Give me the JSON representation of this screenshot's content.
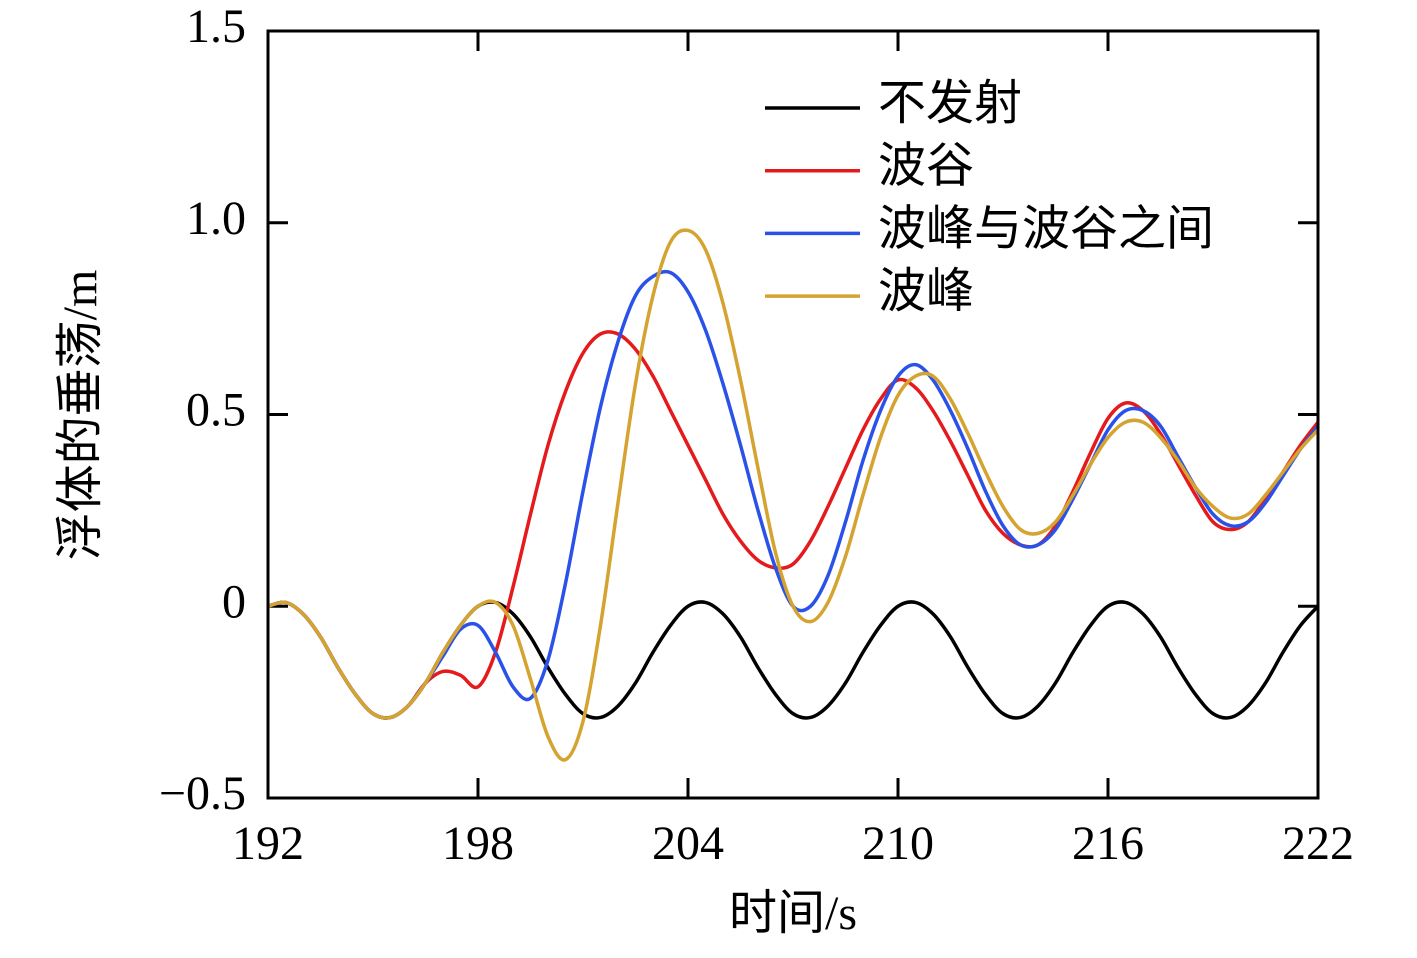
{
  "chart_data": {
    "type": "line",
    "xlabel": "时间/s",
    "ylabel": "浮体的垂荡/m",
    "xlim": [
      192,
      222
    ],
    "xticks": [
      192,
      198,
      204,
      210,
      216,
      222
    ],
    "ylim": [
      -0.5,
      1.5
    ],
    "yticks": [
      {
        "value": -0.5,
        "label": "−0.5"
      },
      0,
      0.5,
      {
        "value": 1.0,
        "label": "1.0"
      },
      1.5
    ],
    "legend": "upper right",
    "x": [
      192,
      192.5,
      193,
      193.5,
      194,
      194.5,
      195,
      195.5,
      196,
      196.5,
      197,
      197.5,
      198,
      198.5,
      199,
      199.5,
      200,
      200.5,
      201,
      201.5,
      202,
      202.5,
      203,
      203.5,
      204,
      204.5,
      205,
      205.5,
      206,
      206.5,
      207,
      207.5,
      208,
      208.5,
      209,
      209.5,
      210,
      210.5,
      211,
      211.5,
      212,
      212.5,
      213,
      213.5,
      214,
      214.5,
      215,
      215.5,
      216,
      216.5,
      217,
      217.5,
      218,
      218.5,
      219,
      219.5,
      220,
      220.5,
      221,
      221.5,
      222
    ],
    "series": [
      {
        "name": "不发射",
        "color": "#000000",
        "values": [
          0.0,
          0.01,
          -0.02,
          -0.08,
          -0.16,
          -0.23,
          -0.28,
          -0.29,
          -0.26,
          -0.2,
          -0.12,
          -0.05,
          0.0,
          0.01,
          -0.02,
          -0.08,
          -0.16,
          -0.23,
          -0.28,
          -0.29,
          -0.26,
          -0.2,
          -0.12,
          -0.05,
          0.0,
          0.01,
          -0.02,
          -0.08,
          -0.16,
          -0.23,
          -0.28,
          -0.29,
          -0.26,
          -0.2,
          -0.12,
          -0.05,
          0.0,
          0.01,
          -0.02,
          -0.08,
          -0.16,
          -0.23,
          -0.28,
          -0.29,
          -0.26,
          -0.2,
          -0.12,
          -0.05,
          0.0,
          0.01,
          -0.02,
          -0.08,
          -0.16,
          -0.23,
          -0.28,
          -0.29,
          -0.26,
          -0.2,
          -0.12,
          -0.05,
          0.0
        ]
      },
      {
        "name": "波谷",
        "color": "#e41a1c",
        "values": [
          0.0,
          0.01,
          -0.02,
          -0.08,
          -0.16,
          -0.23,
          -0.28,
          -0.29,
          -0.26,
          -0.2,
          -0.17,
          -0.18,
          -0.21,
          -0.12,
          0.05,
          0.24,
          0.42,
          0.56,
          0.66,
          0.71,
          0.71,
          0.67,
          0.6,
          0.51,
          0.42,
          0.33,
          0.24,
          0.17,
          0.12,
          0.1,
          0.11,
          0.17,
          0.26,
          0.36,
          0.46,
          0.54,
          0.59,
          0.57,
          0.51,
          0.43,
          0.34,
          0.25,
          0.19,
          0.16,
          0.16,
          0.21,
          0.3,
          0.4,
          0.49,
          0.53,
          0.51,
          0.45,
          0.37,
          0.29,
          0.22,
          0.2,
          0.22,
          0.28,
          0.35,
          0.42,
          0.48
        ]
      },
      {
        "name": "波峰与波谷之间",
        "color": "#2a52e8",
        "values": [
          0.0,
          0.01,
          -0.02,
          -0.08,
          -0.16,
          -0.23,
          -0.28,
          -0.29,
          -0.26,
          -0.2,
          -0.13,
          -0.06,
          -0.05,
          -0.12,
          -0.21,
          -0.24,
          -0.14,
          0.06,
          0.3,
          0.52,
          0.69,
          0.81,
          0.86,
          0.87,
          0.82,
          0.72,
          0.58,
          0.42,
          0.25,
          0.1,
          0.0,
          0.0,
          0.08,
          0.22,
          0.38,
          0.51,
          0.6,
          0.63,
          0.59,
          0.51,
          0.41,
          0.3,
          0.21,
          0.16,
          0.16,
          0.2,
          0.28,
          0.37,
          0.46,
          0.51,
          0.51,
          0.47,
          0.39,
          0.31,
          0.24,
          0.21,
          0.22,
          0.27,
          0.34,
          0.41,
          0.47
        ]
      },
      {
        "name": "波峰",
        "color": "#d4a330",
        "values": [
          0.0,
          0.01,
          -0.02,
          -0.08,
          -0.16,
          -0.23,
          -0.28,
          -0.29,
          -0.26,
          -0.2,
          -0.12,
          -0.05,
          0.0,
          0.01,
          -0.05,
          -0.19,
          -0.34,
          -0.4,
          -0.3,
          -0.05,
          0.27,
          0.58,
          0.81,
          0.95,
          0.98,
          0.93,
          0.79,
          0.59,
          0.36,
          0.14,
          0.0,
          -0.04,
          0.01,
          0.13,
          0.29,
          0.44,
          0.55,
          0.6,
          0.6,
          0.54,
          0.45,
          0.35,
          0.26,
          0.2,
          0.19,
          0.22,
          0.29,
          0.37,
          0.44,
          0.48,
          0.48,
          0.44,
          0.38,
          0.31,
          0.26,
          0.23,
          0.24,
          0.29,
          0.35,
          0.41,
          0.46
        ]
      }
    ]
  }
}
